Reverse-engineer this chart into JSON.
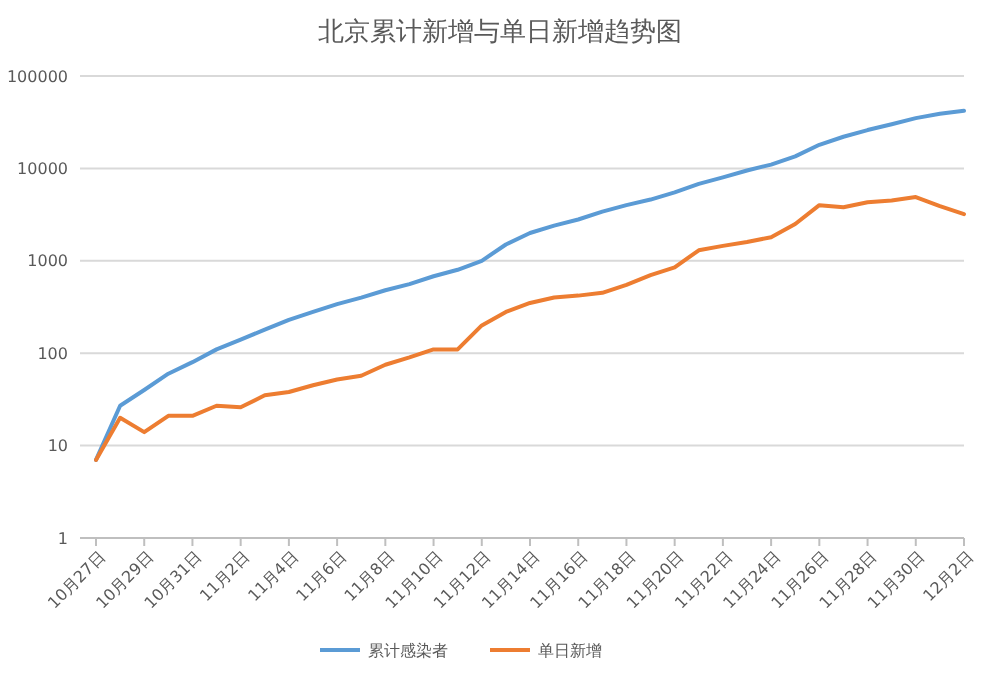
{
  "chart_data": {
    "type": "line",
    "title": "北京累计新增与单日新增趋势图",
    "categories": [
      "10月27日",
      null,
      "10月29日",
      null,
      "10月31日",
      null,
      "11月2日",
      null,
      "11月4日",
      null,
      "11月6日",
      null,
      "11月8日",
      null,
      "11月10日",
      null,
      "11月12日",
      null,
      "11月14日",
      null,
      "11月16日",
      null,
      "11月18日",
      null,
      "11月20日",
      null,
      "11月22日",
      null,
      "11月24日",
      null,
      "11月26日",
      null,
      "11月28日",
      null,
      "11月30日",
      null,
      "12月2日"
    ],
    "series": [
      {
        "name": "累计感染者",
        "color": "#5b9bd5",
        "values": [
          7,
          27,
          40,
          60,
          80,
          110,
          140,
          180,
          230,
          280,
          340,
          400,
          480,
          560,
          680,
          800,
          1000,
          1500,
          2000,
          2400,
          2800,
          3400,
          4000,
          4600,
          5500,
          6800,
          8000,
          9500,
          11000,
          13500,
          18000,
          22000,
          26000,
          30000,
          35000,
          39000,
          42000
        ]
      },
      {
        "name": "单日新增",
        "color": "#ed7d31",
        "values": [
          7,
          20,
          14,
          21,
          21,
          27,
          26,
          35,
          38,
          45,
          52,
          57,
          75,
          90,
          110,
          110,
          200,
          280,
          350,
          400,
          420,
          450,
          550,
          700,
          850,
          1300,
          1450,
          1600,
          1800,
          2500,
          4000,
          3800,
          4300,
          4500,
          4900,
          3900,
          3200
        ]
      }
    ],
    "log": true,
    "ylim": [
      1,
      100000
    ],
    "yticks": [
      1,
      10,
      100,
      1000,
      10000,
      100000
    ],
    "grid": "y",
    "legend": "bottom",
    "marker": "none",
    "line_style": "solid"
  }
}
